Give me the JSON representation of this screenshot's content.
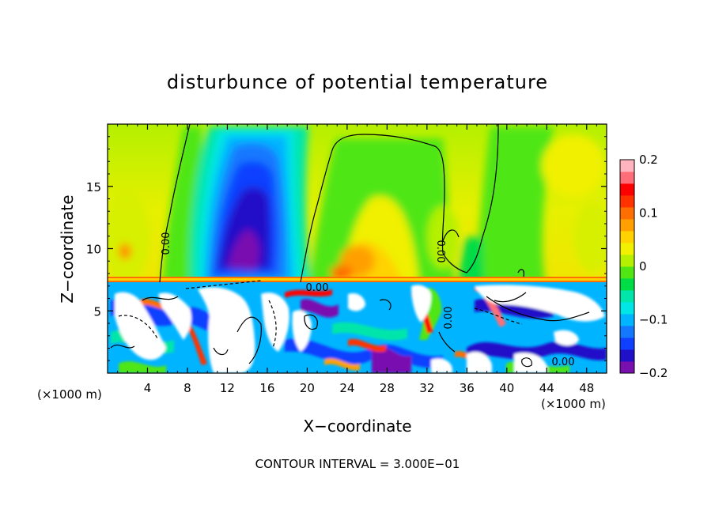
{
  "chart_data": {
    "type": "heatmap",
    "title": "disturbunce of potential temperature",
    "xlabel": "X−coordinate",
    "ylabel": "Z−coordinate",
    "x_unit_left": "(×1000 m)",
    "x_unit_right": "(×1000 m)",
    "footer": "CONTOUR INTERVAL = 3.000E−01",
    "xlim": [
      0,
      50
    ],
    "ylim": [
      0,
      20
    ],
    "x_ticks": [
      "4",
      "8",
      "12",
      "16",
      "20",
      "24",
      "28",
      "32",
      "36",
      "40",
      "44",
      "48"
    ],
    "y_ticks": [
      "5",
      "10",
      "15"
    ],
    "colorbar": {
      "range": [
        -0.2,
        0.2
      ],
      "tick_labels": [
        "0.2",
        "0.1",
        "0",
        "−0.1",
        "−0.2"
      ],
      "tick_values": [
        0.2,
        0.1,
        0,
        -0.1,
        -0.2
      ],
      "colors": [
        "#7a0fb0",
        "#2010c8",
        "#1040ff",
        "#1478ff",
        "#00b4ff",
        "#00e6e6",
        "#00e6aa",
        "#00dc46",
        "#50e614",
        "#b4f000",
        "#f0f000",
        "#ffd200",
        "#ffa000",
        "#ff6e00",
        "#ff3200",
        "#ff0000",
        "#ff6e78",
        "#ffb4be"
      ]
    },
    "contour_labels": [
      "0.00",
      "0.00",
      "0.00",
      "0.00",
      "0.00"
    ]
  }
}
